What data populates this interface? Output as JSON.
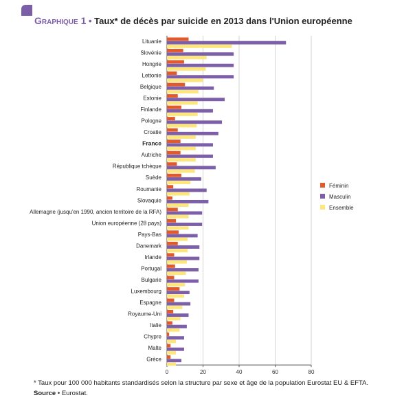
{
  "title": {
    "label": "Graphique 1",
    "bullet": "•",
    "text": "Taux* de décès par suicide en 2013 dans l'Union européenne"
  },
  "footnote": "* Taux pour 100 000 habitants standardisés selon la structure par sexe et âge de la population Eurostat EU & EFTA.",
  "source": {
    "label": "Source",
    "bullet": "•",
    "text": "Eurostat."
  },
  "colors": {
    "feminin": "#e05a2b",
    "masculin": "#7c5fa8",
    "ensemble": "#fde77d",
    "accent": "#7b5ea7"
  },
  "chart_data": {
    "type": "bar",
    "orientation": "horizontal",
    "categories": [
      "Lituanie",
      "Slovénie",
      "Hongrie",
      "Lettonie",
      "Belgique",
      "Estonie",
      "Finlande",
      "Pologne",
      "Croatie",
      "France",
      "Autriche",
      "République tchèque",
      "Suède",
      "Roumanie",
      "Slovaquie",
      "Allemagne (jusqu'en 1990, ancien territoire de la RFA)",
      "Union européenne (28 pays)",
      "Pays-Bas",
      "Danemark",
      "Irlande",
      "Portugal",
      "Bulgarie",
      "Luxembourg",
      "Espagne",
      "Royaume-Uni",
      "Italie",
      "Chypre",
      "Malte",
      "Grèce"
    ],
    "highlight": "France",
    "series": [
      {
        "name": "Féminin",
        "values": [
          12,
          9,
          9.5,
          5.5,
          10,
          6,
          8,
          4.5,
          6,
          7.5,
          7.5,
          5.5,
          8,
          3.5,
          3,
          6,
          5,
          6.5,
          6,
          4,
          4.5,
          4,
          7,
          4,
          3.5,
          3,
          1.2,
          2,
          2
        ]
      },
      {
        "name": "Masculin",
        "values": [
          66,
          37,
          37,
          37,
          26,
          32,
          25.5,
          30.5,
          28.5,
          25.5,
          25.5,
          27,
          19,
          22,
          23,
          19.5,
          19.5,
          17,
          18,
          18,
          17.5,
          17.5,
          12.5,
          13,
          12,
          11,
          9.5,
          9.5,
          8
        ]
      },
      {
        "name": "Ensemble",
        "values": [
          36,
          22,
          21.5,
          20,
          17.5,
          17,
          17,
          16.5,
          16,
          16,
          16,
          15.5,
          13,
          12.5,
          12,
          12,
          12,
          11.5,
          11.5,
          11,
          10.5,
          10,
          9.5,
          8.5,
          7.5,
          7,
          5,
          5,
          5
        ]
      }
    ],
    "xlim": [
      0,
      80
    ],
    "xticks": [
      0,
      20,
      40,
      60,
      80
    ],
    "grid": "vertical",
    "legend": "right"
  }
}
